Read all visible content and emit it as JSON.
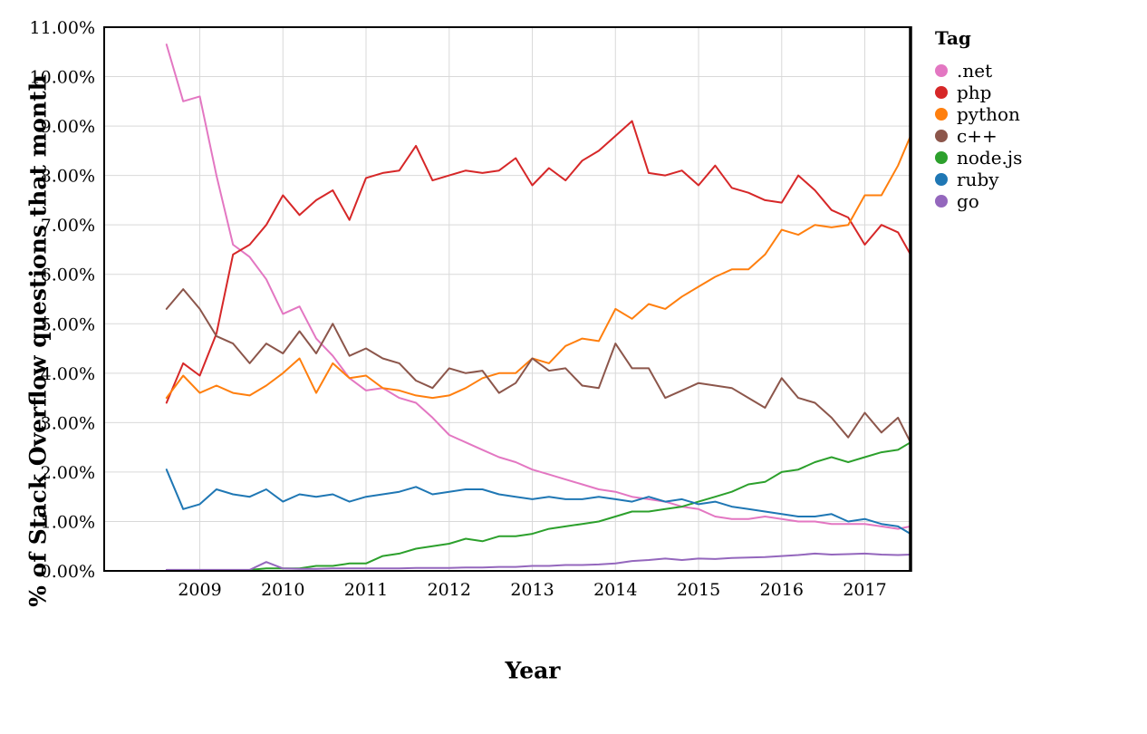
{
  "axes": {
    "x_title": "Year",
    "y_title": "% of Stack Overflow questions that month"
  },
  "legend": {
    "title": "Tag"
  },
  "chart_data": {
    "type": "line",
    "title": "",
    "xlabel": "Year",
    "ylabel": "% of Stack Overflow questions that month",
    "legend_title": "Tag",
    "legend_position": "right",
    "grid": true,
    "colors": {
      "background": "#ffffff",
      "grid": "#d9d9d9",
      "axis": "#000000",
      "text": "#000000"
    },
    "x_range": [
      2007.85,
      2017.55
    ],
    "y_range": [
      0,
      11
    ],
    "x_ticks": [
      2009,
      2010,
      2011,
      2012,
      2013,
      2014,
      2015,
      2016,
      2017
    ],
    "y_ticks": [
      0,
      1,
      2,
      3,
      4,
      5,
      6,
      7,
      8,
      9,
      10,
      11
    ],
    "y_tick_labels": [
      "0.00%",
      "1.00%",
      "2.00%",
      "3.00%",
      "4.00%",
      "5.00%",
      "6.00%",
      "7.00%",
      "8.00%",
      "9.00%",
      "10.00%",
      "11.00%"
    ],
    "x": [
      2008.6,
      2008.8,
      2009.0,
      2009.2,
      2009.4,
      2009.6,
      2009.8,
      2010.0,
      2010.2,
      2010.4,
      2010.6,
      2010.8,
      2011.0,
      2011.2,
      2011.4,
      2011.6,
      2011.8,
      2012.0,
      2012.2,
      2012.4,
      2012.6,
      2012.8,
      2013.0,
      2013.2,
      2013.4,
      2013.6,
      2013.8,
      2014.0,
      2014.2,
      2014.4,
      2014.6,
      2014.8,
      2015.0,
      2015.2,
      2015.4,
      2015.6,
      2015.8,
      2016.0,
      2016.2,
      2016.4,
      2016.6,
      2016.8,
      2017.0,
      2017.2,
      2017.4,
      2017.55
    ],
    "series": [
      {
        "name": ".net",
        "color": "#e377c2",
        "values": [
          10.65,
          9.5,
          9.6,
          8.0,
          6.6,
          6.35,
          5.9,
          5.2,
          5.35,
          4.7,
          4.35,
          3.9,
          3.65,
          3.7,
          3.5,
          3.4,
          3.1,
          2.75,
          2.6,
          2.45,
          2.3,
          2.2,
          2.05,
          1.95,
          1.85,
          1.75,
          1.65,
          1.6,
          1.5,
          1.45,
          1.4,
          1.3,
          1.25,
          1.1,
          1.05,
          1.05,
          1.1,
          1.05,
          1.0,
          1.0,
          0.95,
          0.95,
          0.95,
          0.9,
          0.85,
          0.9
        ]
      },
      {
        "name": "php",
        "color": "#d62728",
        "values": [
          3.4,
          4.2,
          3.95,
          4.8,
          6.4,
          6.6,
          7.0,
          7.6,
          7.2,
          7.5,
          7.7,
          7.1,
          7.95,
          8.05,
          8.1,
          8.6,
          7.9,
          8.0,
          8.1,
          8.05,
          8.1,
          8.35,
          7.8,
          8.15,
          7.9,
          8.3,
          8.5,
          8.8,
          9.1,
          8.05,
          8.0,
          8.1,
          7.8,
          8.2,
          7.75,
          7.65,
          7.5,
          7.45,
          8.0,
          7.7,
          7.3,
          7.15,
          6.6,
          7.0,
          6.85,
          6.4
        ]
      },
      {
        "name": "python",
        "color": "#ff7f0e",
        "values": [
          3.5,
          3.95,
          3.6,
          3.75,
          3.6,
          3.55,
          3.75,
          4.0,
          4.3,
          3.6,
          4.2,
          3.9,
          3.95,
          3.7,
          3.65,
          3.55,
          3.5,
          3.55,
          3.7,
          3.9,
          4.0,
          4.0,
          4.3,
          4.2,
          4.55,
          4.7,
          4.65,
          5.3,
          5.1,
          5.4,
          5.3,
          5.55,
          5.75,
          5.95,
          6.1,
          6.1,
          6.4,
          6.9,
          6.8,
          7.0,
          6.95,
          7.0,
          7.6,
          7.6,
          8.2,
          8.8
        ]
      },
      {
        "name": "c++",
        "color": "#8c564b",
        "values": [
          5.3,
          5.7,
          5.3,
          4.75,
          4.6,
          4.2,
          4.6,
          4.4,
          4.85,
          4.4,
          5.0,
          4.35,
          4.5,
          4.3,
          4.2,
          3.85,
          3.7,
          4.1,
          4.0,
          4.05,
          3.6,
          3.8,
          4.3,
          4.05,
          4.1,
          3.75,
          3.7,
          4.6,
          4.1,
          4.1,
          3.5,
          3.65,
          3.8,
          3.75,
          3.7,
          3.5,
          3.3,
          3.9,
          3.5,
          3.4,
          3.1,
          2.7,
          3.2,
          2.8,
          3.1,
          2.6
        ]
      },
      {
        "name": "node.js",
        "color": "#2ca02c",
        "values": [
          0.0,
          0.0,
          0.0,
          0.0,
          0.0,
          0.02,
          0.05,
          0.05,
          0.05,
          0.1,
          0.1,
          0.15,
          0.15,
          0.3,
          0.35,
          0.45,
          0.5,
          0.55,
          0.65,
          0.6,
          0.7,
          0.7,
          0.75,
          0.85,
          0.9,
          0.95,
          1.0,
          1.1,
          1.2,
          1.2,
          1.25,
          1.3,
          1.4,
          1.5,
          1.6,
          1.75,
          1.8,
          2.0,
          2.05,
          2.2,
          2.3,
          2.2,
          2.3,
          2.4,
          2.45,
          2.6
        ]
      },
      {
        "name": "ruby",
        "color": "#1f77b4",
        "values": [
          2.05,
          1.25,
          1.35,
          1.65,
          1.55,
          1.5,
          1.65,
          1.4,
          1.55,
          1.5,
          1.55,
          1.4,
          1.5,
          1.55,
          1.6,
          1.7,
          1.55,
          1.6,
          1.65,
          1.65,
          1.55,
          1.5,
          1.45,
          1.5,
          1.45,
          1.45,
          1.5,
          1.45,
          1.4,
          1.5,
          1.4,
          1.45,
          1.35,
          1.4,
          1.3,
          1.25,
          1.2,
          1.15,
          1.1,
          1.1,
          1.15,
          1.0,
          1.05,
          0.95,
          0.9,
          0.75
        ]
      },
      {
        "name": "go",
        "color": "#9467bd",
        "values": [
          0.02,
          0.02,
          0.02,
          0.02,
          0.02,
          0.02,
          0.18,
          0.05,
          0.04,
          0.04,
          0.05,
          0.05,
          0.05,
          0.05,
          0.05,
          0.06,
          0.06,
          0.06,
          0.07,
          0.07,
          0.08,
          0.08,
          0.1,
          0.1,
          0.12,
          0.12,
          0.13,
          0.15,
          0.2,
          0.22,
          0.25,
          0.22,
          0.25,
          0.24,
          0.26,
          0.27,
          0.28,
          0.3,
          0.32,
          0.35,
          0.33,
          0.34,
          0.35,
          0.33,
          0.32,
          0.33
        ]
      }
    ]
  }
}
